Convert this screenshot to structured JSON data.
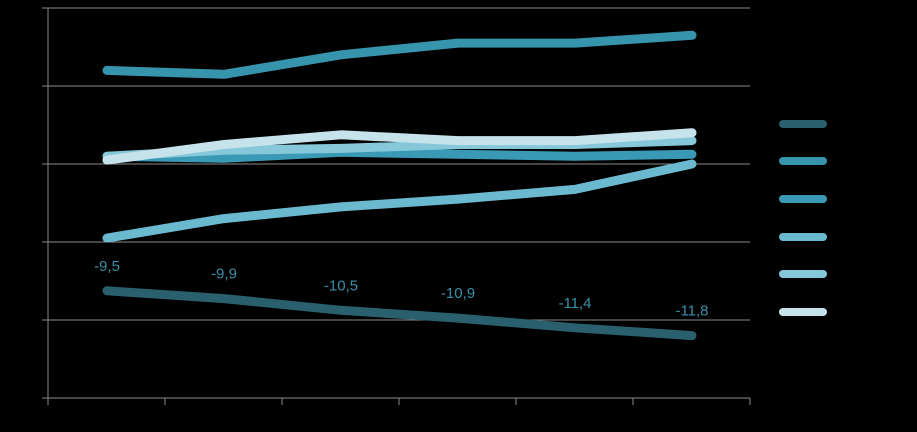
{
  "chart_data": {
    "type": "line",
    "title": "",
    "xlabel": "",
    "ylabel": "",
    "x": [
      1,
      2,
      3,
      4,
      5,
      6
    ],
    "ylim": [
      -15,
      5
    ],
    "grid": true,
    "legend_position": "right",
    "series": [
      {
        "values": [
          -9.5,
          -9.9,
          -10.5,
          -10.9,
          -11.4,
          -11.8
        ],
        "color": "#2a5f6e",
        "labels": [
          "-9,5",
          "-9,9",
          "-10,5",
          "-10,9",
          "-11,4",
          "-11,8"
        ]
      },
      {
        "values": [
          -6.8,
          -5.8,
          -5.2,
          -4.8,
          -4.3,
          -3.0
        ],
        "color": "#6bb9cf"
      },
      {
        "values": [
          -2.6,
          -2.7,
          -2.4,
          -2.5,
          -2.6,
          -2.5
        ],
        "color": "#3a9ab5"
      },
      {
        "values": [
          -2.6,
          -2.3,
          -2.2,
          -2.0,
          -2.0,
          -1.8
        ],
        "color": "#86c8d9"
      },
      {
        "values": [
          -2.8,
          -2.0,
          -1.5,
          -1.8,
          -1.8,
          -1.4
        ],
        "color": "#c6e3ec"
      },
      {
        "values": [
          1.8,
          1.6,
          2.6,
          3.2,
          3.2,
          3.6
        ],
        "color": "#3794ad"
      }
    ]
  }
}
